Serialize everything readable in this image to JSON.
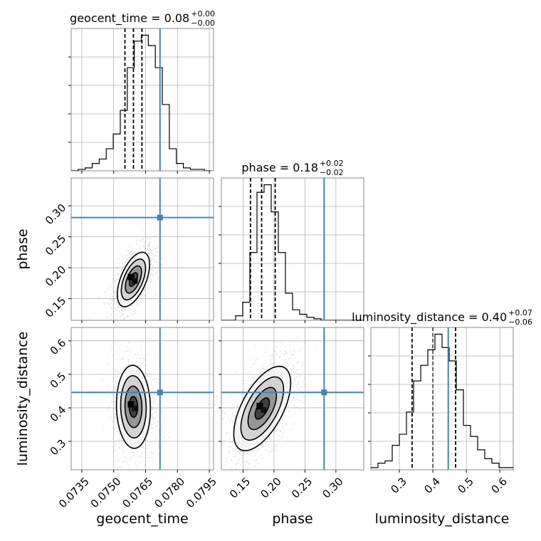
{
  "chart_data": {
    "type": "corner",
    "truth_color": "#4682b4",
    "parameters": [
      {
        "name": "geocent_time",
        "xlabel": "geocent_time",
        "range": [
          0.073,
          0.0797
        ],
        "ticks": [
          "0.0735",
          "0.0750",
          "0.0765",
          "0.0780",
          "0.0795"
        ],
        "tick_values": [
          0.0735,
          0.075,
          0.0765,
          0.078,
          0.0795
        ],
        "title_main": "geocent_time = 0.08",
        "title_sup": "+0.00",
        "title_sub": "−0.00",
        "quantiles": [
          0.07553,
          0.07593,
          0.07633
        ],
        "truth": 0.07718,
        "histogram": {
          "edges_start": 0.073,
          "bin_width": 0.00033,
          "counts": [
            0,
            1,
            2,
            5,
            8,
            15,
            25,
            41,
            70,
            88,
            92,
            85,
            70,
            45,
            15,
            5,
            2,
            1,
            1,
            0
          ]
        }
      },
      {
        "name": "phase",
        "xlabel": "phase",
        "ylabel": "phase",
        "range": [
          0.115,
          0.345
        ],
        "ticks": [
          "0.15",
          "0.20",
          "0.25",
          "0.30"
        ],
        "tick_values": [
          0.15,
          0.2,
          0.25,
          0.3
        ],
        "title_main": "phase = 0.18",
        "title_sup": "+0.02",
        "title_sub": "−0.02",
        "quantiles": [
          0.162,
          0.18,
          0.202
        ],
        "truth": 0.281,
        "histogram": {
          "edges_start": 0.115,
          "bin_width": 0.0115,
          "counts": [
            0,
            0,
            3,
            12,
            45,
            85,
            90,
            72,
            45,
            18,
            7,
            4,
            2,
            1,
            0,
            0,
            0,
            0,
            0,
            0
          ]
        }
      },
      {
        "name": "luminosity_distance",
        "xlabel": "luminosity_distance",
        "ylabel": "luminosity_distance",
        "range": [
          0.215,
          0.64
        ],
        "ticks": [
          "0.3",
          "0.4",
          "0.5",
          "0.6"
        ],
        "tick_values": [
          0.3,
          0.4,
          0.5,
          0.6
        ],
        "title_main": "luminosity_distance = 0.40",
        "title_sup": "+0.07",
        "title_sub": "−0.06",
        "quantiles": [
          0.338,
          0.4,
          0.468
        ],
        "truth": 0.446,
        "histogram": {
          "edges_start": 0.215,
          "bin_width": 0.02125,
          "counts": [
            1,
            3,
            4,
            11,
            16,
            26,
            40,
            47,
            54,
            61,
            55,
            49,
            36,
            20,
            15,
            9,
            5,
            3,
            1,
            1
          ]
        }
      }
    ],
    "pairs": [
      {
        "x": "geocent_time",
        "y": "phase",
        "center": [
          0.07593,
          0.181
        ],
        "sd": [
          0.00038,
          0.022
        ],
        "rho": 0.55
      },
      {
        "x": "geocent_time",
        "y": "luminosity_distance",
        "center": [
          0.07593,
          0.403
        ],
        "sd": [
          0.0004,
          0.062
        ],
        "rho": -0.05
      },
      {
        "x": "phase",
        "y": "luminosity_distance",
        "center": [
          0.181,
          0.398
        ],
        "sd": [
          0.023,
          0.063
        ],
        "rho": 0.6
      }
    ],
    "contour_levels": [
      0.5,
      1.0,
      1.5,
      2.0
    ]
  }
}
